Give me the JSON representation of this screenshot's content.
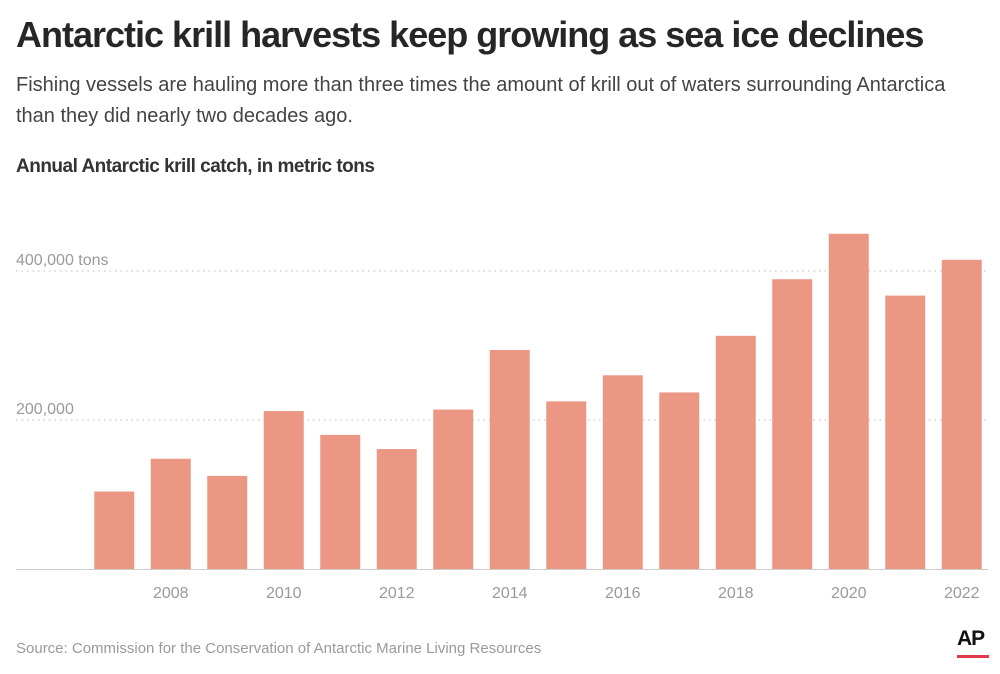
{
  "header": {
    "title": "Antarctic krill harvests keep growing as sea ice declines",
    "subtitle": "Fishing vessels are hauling more than three times the amount of krill out of waters surrounding Antarctica than they did nearly two decades ago.",
    "chart_title": "Annual Antarctic krill catch, in metric tons"
  },
  "footer": {
    "source": "Source: Commission for the Conservation of Antarctic Marine Living Resources",
    "logo_text": "AP",
    "logo_accent_color": "#e03a48"
  },
  "chart_data": {
    "type": "bar",
    "title": "Annual Antarctic krill catch, in metric tons",
    "xlabel": "",
    "ylabel": "",
    "categories": [
      "2007",
      "2008",
      "2009",
      "2010",
      "2011",
      "2012",
      "2013",
      "2014",
      "2015",
      "2016",
      "2017",
      "2018",
      "2019",
      "2020",
      "2021",
      "2022"
    ],
    "values": [
      104000,
      148000,
      125000,
      212000,
      180000,
      161000,
      214000,
      294000,
      225000,
      260000,
      237000,
      313000,
      389000,
      450000,
      367000,
      415000
    ],
    "x_tick_labels": [
      "2008",
      "2010",
      "2012",
      "2014",
      "2016",
      "2018",
      "2020",
      "2022"
    ],
    "y_ticks": [
      {
        "value": 200000,
        "label": "200,000"
      },
      {
        "value": 400000,
        "label": "400,000 tons"
      }
    ],
    "ylim": [
      0,
      460000
    ],
    "grid": true,
    "grid_style": "dotted",
    "legend": "none",
    "bar_color": "#ec9784",
    "axis_color": "#cccccc",
    "grid_color": "#bbbbbb",
    "tick_label_color": "#9a9a9a"
  }
}
